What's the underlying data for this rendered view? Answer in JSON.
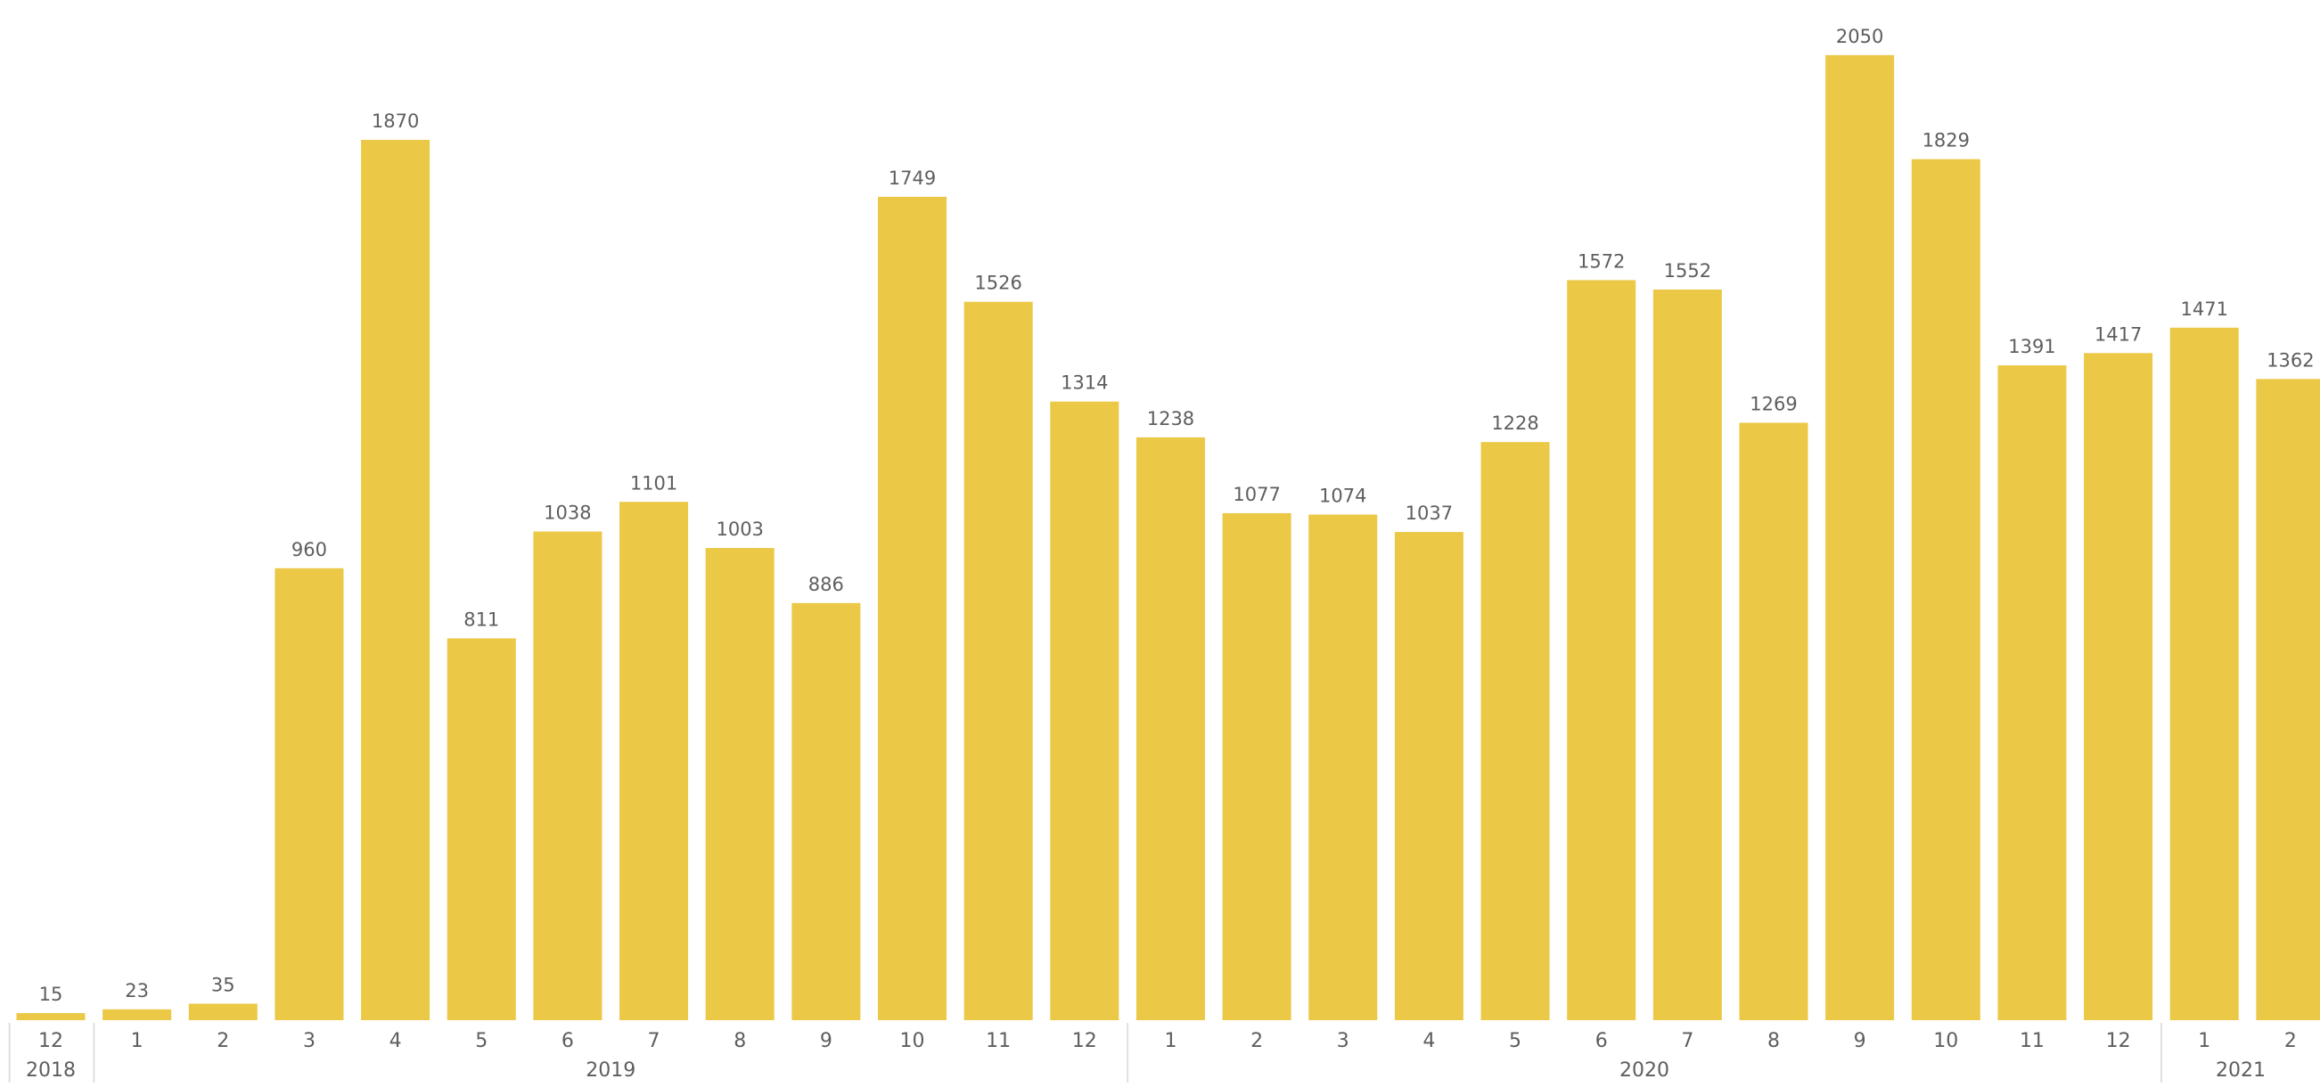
{
  "chart_data": {
    "type": "bar",
    "title": "",
    "xlabel": "",
    "ylabel": "",
    "ylim": [
      0,
      2080
    ],
    "grid": false,
    "legend": "none",
    "bar_color": "#ebc845",
    "categories": [
      {
        "month": "12",
        "year": "2018"
      },
      {
        "month": "1",
        "year": "2019"
      },
      {
        "month": "2",
        "year": "2019"
      },
      {
        "month": "3",
        "year": "2019"
      },
      {
        "month": "4",
        "year": "2019"
      },
      {
        "month": "5",
        "year": "2019"
      },
      {
        "month": "6",
        "year": "2019"
      },
      {
        "month": "7",
        "year": "2019"
      },
      {
        "month": "8",
        "year": "2019"
      },
      {
        "month": "9",
        "year": "2019"
      },
      {
        "month": "10",
        "year": "2019"
      },
      {
        "month": "11",
        "year": "2019"
      },
      {
        "month": "12",
        "year": "2019"
      },
      {
        "month": "1",
        "year": "2020"
      },
      {
        "month": "2",
        "year": "2020"
      },
      {
        "month": "3",
        "year": "2020"
      },
      {
        "month": "4",
        "year": "2020"
      },
      {
        "month": "5",
        "year": "2020"
      },
      {
        "month": "6",
        "year": "2020"
      },
      {
        "month": "7",
        "year": "2020"
      },
      {
        "month": "8",
        "year": "2020"
      },
      {
        "month": "9",
        "year": "2020"
      },
      {
        "month": "10",
        "year": "2020"
      },
      {
        "month": "11",
        "year": "2020"
      },
      {
        "month": "12",
        "year": "2020"
      },
      {
        "month": "1",
        "year": "2021"
      },
      {
        "month": "2",
        "year": "2021"
      }
    ],
    "values": [
      15,
      23,
      35,
      960,
      1870,
      811,
      1038,
      1101,
      1003,
      886,
      1749,
      1526,
      1314,
      1238,
      1077,
      1074,
      1037,
      1228,
      1572,
      1552,
      1269,
      2050,
      1829,
      1391,
      1417,
      1471,
      1362
    ],
    "year_groups": [
      "2018",
      "2019",
      "2020",
      "2021"
    ]
  }
}
